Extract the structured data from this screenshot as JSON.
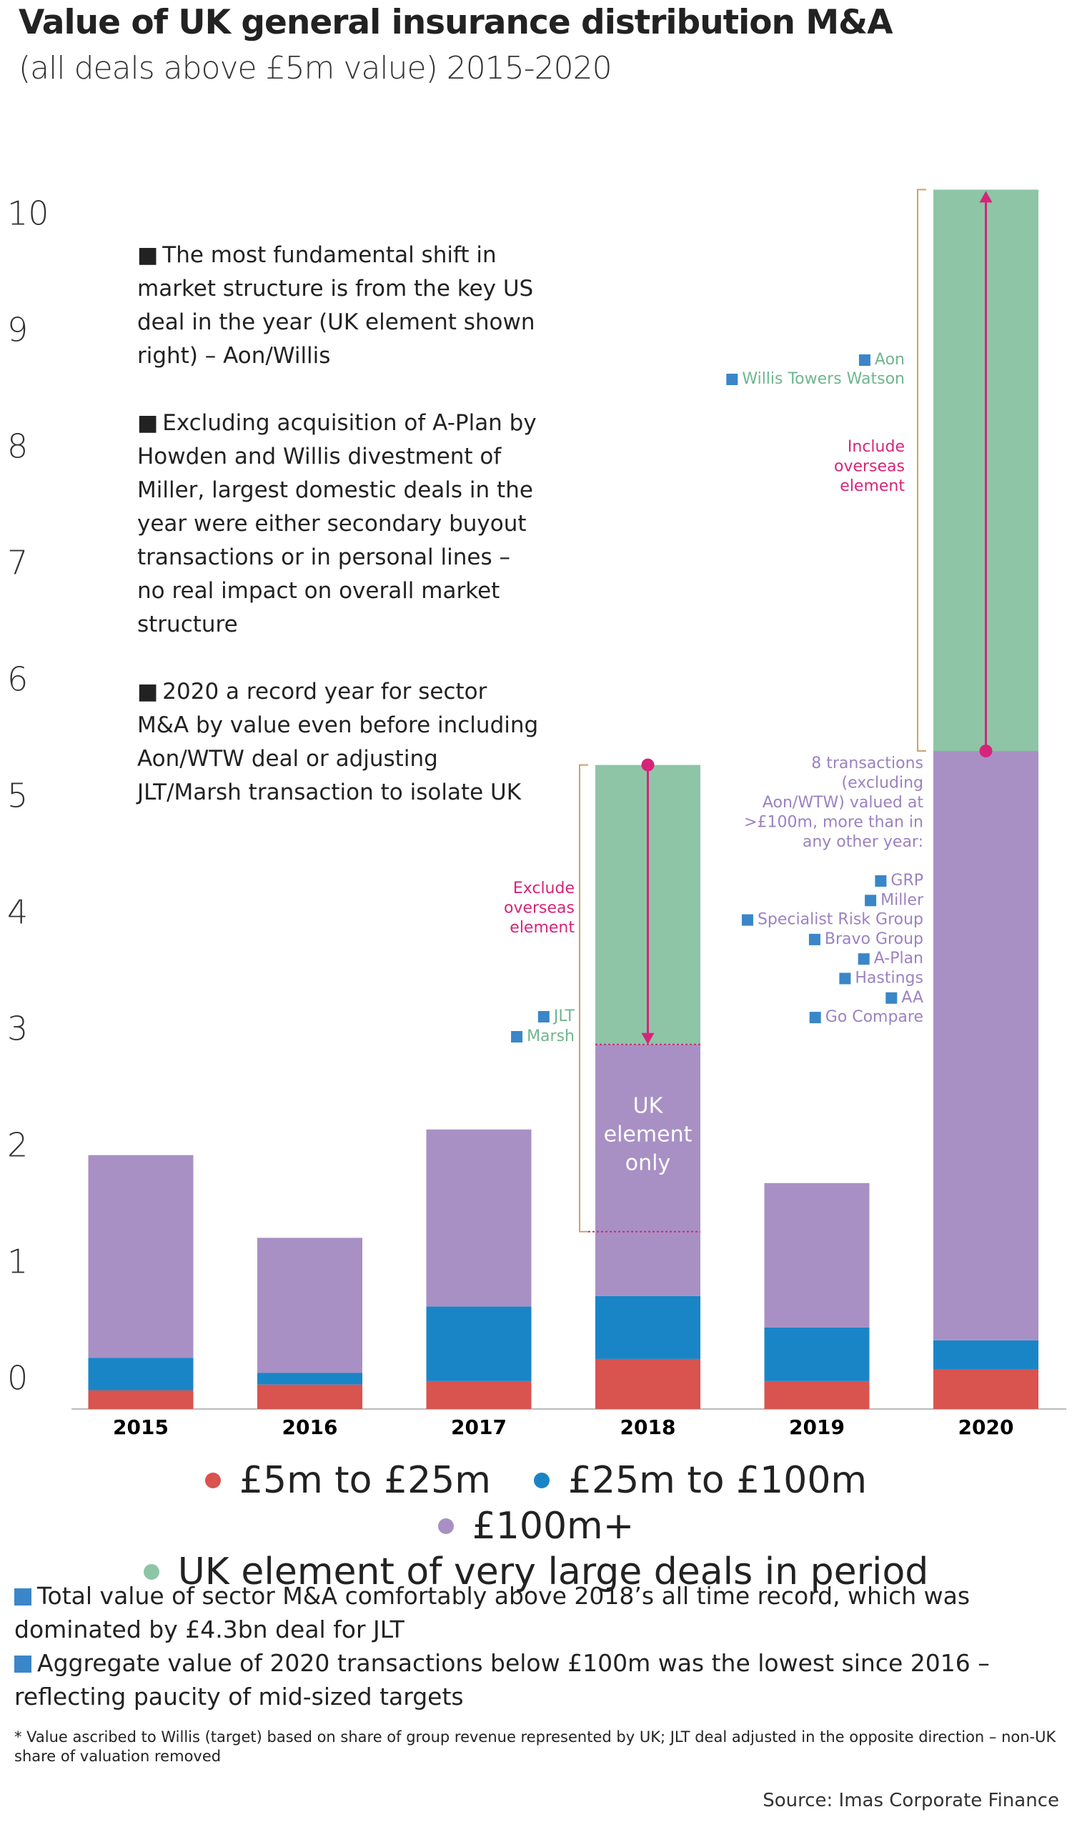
{
  "chart_data": {
    "type": "stacked-bar",
    "title": "Value of UK general insurance distribution M&A",
    "subtitle": "(all deals above £5m value) 2015-2020",
    "categories": [
      "2015",
      "2016",
      "2017",
      "2018",
      "2019",
      "2020"
    ],
    "series": [
      {
        "name": "£5m to £25m",
        "color": "#d9534f",
        "values": [
          0.16,
          0.21,
          0.24,
          0.43,
          0.24,
          0.34
        ]
      },
      {
        "name": "£25m to £100m",
        "color": "#1a85c6",
        "values": [
          0.28,
          0.1,
          0.64,
          0.54,
          0.46,
          0.25
        ]
      },
      {
        "name": "£100m+",
        "color": "#a890c4",
        "values": [
          1.74,
          1.16,
          1.52,
          2.16,
          1.24,
          5.06
        ]
      },
      {
        "name": "UK element of very large deals in period",
        "color": "#8ec5a6",
        "values": [
          null,
          null,
          null,
          2.4,
          null,
          4.82
        ]
      }
    ],
    "ylim": [
      0,
      10.5
    ],
    "yticks": [
      0,
      1,
      2,
      3,
      4,
      5,
      6,
      7,
      8,
      9,
      10
    ],
    "notes": [
      "The most fundamental shift in market structure is from the key US deal in the year (UK element shown right) – Aon/Willis",
      "Excluding acquisition of A-Plan by Howden and Willis divestment of Miller, largest domestic deals in the year were either secondary buyout transactions or in personal lines – no real impact on overall market structure",
      "2020 a record year for sector M&A by value even before including Aon/WTW deal or adjusting JLT/Marsh transaction to isolate UK"
    ],
    "annotation_2018": {
      "arrow_label": [
        "Exclude",
        "overseas",
        "element"
      ],
      "deals": [
        "JLT",
        "Marsh"
      ],
      "bar_label": [
        "UK",
        "element",
        "only"
      ]
    },
    "annotation_2020": {
      "deals": [
        "Aon",
        "Willis Towers Watson"
      ],
      "arrow_label": [
        "Include",
        "overseas",
        "element"
      ],
      "transactions_note": [
        "8 transactions",
        "(excluding",
        "Aon/WTW) valued at",
        ">£100m, more than in",
        "any other year:"
      ],
      "transactions": [
        "GRP",
        "Miller",
        "Specialist Risk Group",
        "Bravo Group",
        "A-Plan",
        "Hastings",
        "AA",
        "Go Compare"
      ]
    }
  },
  "footer": {
    "bullets": [
      "Total value of sector M&A comfortably above 2018’s all time record, which was dominated by £4.3bn deal for JLT",
      "Aggregate value of 2020 transactions below £100m was the lowest since 2016 – reflecting paucity of mid-sized targets"
    ],
    "footnote": "* Value ascribed to Willis (target) based on share of group revenue represented by UK; JLT deal adjusted in the opposite direction – non-UK share of valuation removed",
    "source": "Source: Imas Corporate Finance"
  }
}
